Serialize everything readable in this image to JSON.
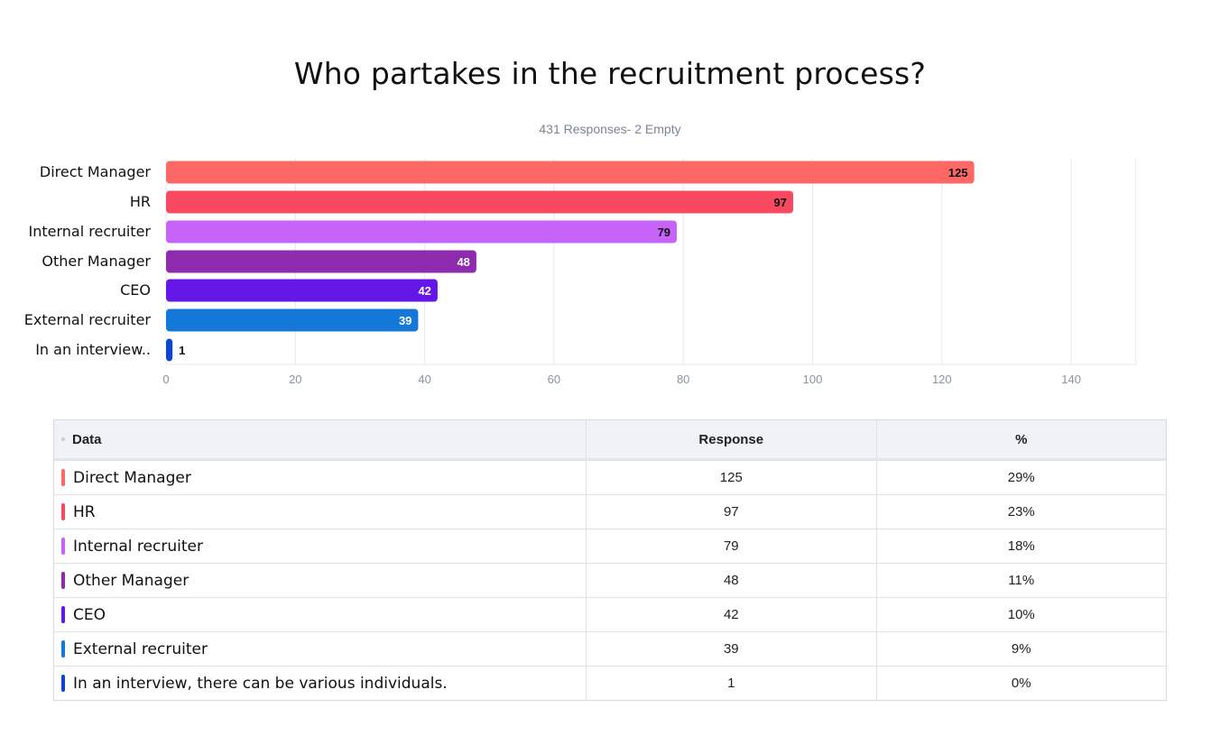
{
  "title": "Who partakes in the recruitment process?",
  "subtitle": "431 Responses- 2 Empty",
  "chart_data": {
    "type": "bar",
    "orientation": "horizontal",
    "categories": [
      "Direct Manager",
      "HR",
      "Internal recruiter",
      "Other Manager",
      "CEO",
      "External recruiter",
      "In an interview.."
    ],
    "values": [
      125,
      97,
      79,
      48,
      42,
      39,
      1
    ],
    "colors": [
      "#fd6766",
      "#f84961",
      "#c663f9",
      "#8e2aad",
      "#6417e6",
      "#1478d9",
      "#0c45d2"
    ],
    "value_label_colors": [
      "#111111",
      "#111111",
      "#111111",
      "#ffffff",
      "#ffffff",
      "#ffffff",
      "#111111"
    ],
    "xlim": [
      0,
      150
    ],
    "xticks": [
      0,
      20,
      40,
      60,
      80,
      100,
      120,
      140
    ],
    "grid": true,
    "legend": "none"
  },
  "table": {
    "headers": [
      "Data",
      "Response",
      "%"
    ],
    "rows": [
      {
        "label": "Direct Manager",
        "response": "125",
        "percent": "29%",
        "color": "#fd6766"
      },
      {
        "label": "HR",
        "response": "97",
        "percent": "23%",
        "color": "#f84961"
      },
      {
        "label": "Internal recruiter",
        "response": "79",
        "percent": "18%",
        "color": "#c663f9"
      },
      {
        "label": "Other Manager",
        "response": "48",
        "percent": "11%",
        "color": "#8e2aad"
      },
      {
        "label": "CEO",
        "response": "42",
        "percent": "10%",
        "color": "#6417e6"
      },
      {
        "label": "External recruiter",
        "response": "39",
        "percent": "9%",
        "color": "#1478d9"
      },
      {
        "label": "In an interview, there can be various individuals.",
        "response": "1",
        "percent": "0%",
        "color": "#0c45d2"
      }
    ]
  }
}
